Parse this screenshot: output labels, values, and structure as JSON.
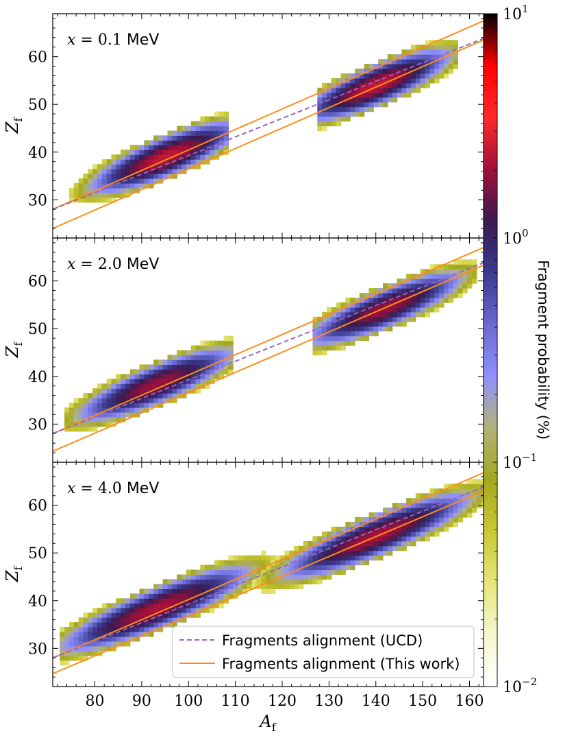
{
  "colors": {
    "fragment_fit": "#ff8c1a",
    "ucd_line": "#9467bd",
    "axes": "#000000",
    "colormap": [
      "#ffffff",
      "#f6f6d0",
      "#e6e67a",
      "#c8c832",
      "#a3a81f",
      "#b2b27a",
      "#9090ff",
      "#6a6ad0",
      "#3a3a8e",
      "#3a1a50",
      "#a0103a",
      "#ff2a2a",
      "#ff0000",
      "#000000"
    ]
  },
  "chart_data": {
    "type": "heatmap",
    "xlabel": "A_f",
    "xlabel_italic": "A",
    "xlabel_sub": "f",
    "ylabel_italic": "Z",
    "ylabel_sub": "f",
    "xlim": [
      71,
      163
    ],
    "ylim": [
      22,
      69
    ],
    "xticks": [
      80,
      90,
      100,
      110,
      120,
      130,
      140,
      150,
      160
    ],
    "yticks": [
      30,
      40,
      50,
      60
    ],
    "colorbar": {
      "label": "Fragment probability (%)",
      "scale": "log",
      "range": [
        0.01,
        10
      ],
      "ticks": [
        {
          "value": 10,
          "base": "10",
          "exp": "1"
        },
        {
          "value": 1,
          "base": "10",
          "exp": "0"
        },
        {
          "value": 0.1,
          "base": "10",
          "exp": "−1"
        },
        {
          "value": 0.01,
          "base": "10",
          "exp": "−2"
        }
      ]
    },
    "legend": {
      "placement": "lower right of bottom panel",
      "entries": [
        {
          "label": "Fragments alignment (UCD)",
          "style": "dashed",
          "color": "#9467bd"
        },
        {
          "label": "Fragments alignment (This work)",
          "style": "solid",
          "color": "#ff8c1a"
        }
      ]
    },
    "panels": [
      {
        "label_var": "x = ",
        "label_value": "0.1",
        "label_unit": "MeV",
        "ucd_line": [
          [
            71,
            28.0
          ],
          [
            163,
            63.8
          ]
        ],
        "fit_upper": [
          [
            71,
            28.0
          ],
          [
            163,
            67.5
          ]
        ],
        "fit_lower": [
          [
            71,
            24.0
          ],
          [
            163,
            63.5
          ]
        ],
        "clusters": [
          {
            "a0": 73,
            "a1": 108,
            "center": [
              95,
              39.0
            ],
            "peak": 2.5,
            "sigma_a": 7,
            "width": 3.4
          },
          {
            "a0": 128,
            "a1": 157,
            "center": [
              140,
              54.0
            ],
            "peak": 2.5,
            "sigma_a": 7,
            "width": 3.4
          }
        ]
      },
      {
        "label_var": "x = ",
        "label_value": "2.0",
        "label_unit": "MeV",
        "ucd_line": [
          [
            71,
            28.0
          ],
          [
            163,
            63.8
          ]
        ],
        "fit_upper": [
          [
            71,
            28.0
          ],
          [
            163,
            67.0
          ]
        ],
        "fit_lower": [
          [
            71,
            24.3
          ],
          [
            163,
            63.3
          ]
        ],
        "clusters": [
          {
            "a0": 74,
            "a1": 109,
            "center": [
              93,
              38.3
            ],
            "peak": 2.0,
            "sigma_a": 7.5,
            "width": 3.4
          },
          {
            "a0": 127,
            "a1": 161,
            "center": [
              142,
              54.3
            ],
            "peak": 2.0,
            "sigma_a": 7.5,
            "width": 3.4
          }
        ]
      },
      {
        "label_var": "x = ",
        "label_value": "4.0",
        "label_unit": "MeV",
        "ucd_line": [
          [
            71,
            28.0
          ],
          [
            163,
            63.8
          ]
        ],
        "fit_upper": [
          [
            71,
            28.0
          ],
          [
            163,
            66.8
          ]
        ],
        "fit_lower": [
          [
            71,
            24.7
          ],
          [
            163,
            63.0
          ]
        ],
        "clusters": [
          {
            "a0": 73,
            "a1": 120,
            "center": [
              93,
              38.3
            ],
            "peak": 2.2,
            "sigma_a": 9,
            "width": 3.5
          },
          {
            "a0": 105,
            "a1": 163,
            "center": [
              140,
              53.6
            ],
            "peak": 2.2,
            "sigma_a": 9,
            "width": 3.5
          }
        ]
      }
    ]
  }
}
